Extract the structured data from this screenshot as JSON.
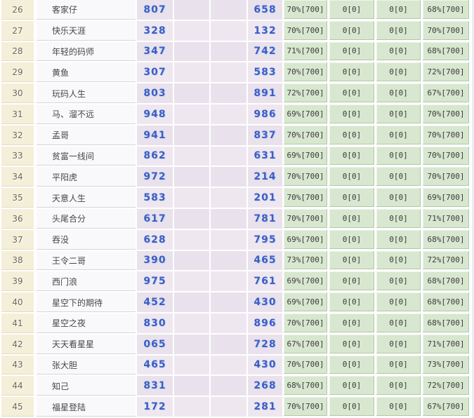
{
  "table": {
    "rows": [
      {
        "rank": "26",
        "name": "客家仔",
        "num1": "807",
        "num2": "658",
        "stat1": "70%[700]",
        "stat2": "0[0]",
        "stat3": "0[0]",
        "stat4": "68%[700]"
      },
      {
        "rank": "27",
        "name": "快乐天涯",
        "num1": "328",
        "num2": "132",
        "stat1": "70%[700]",
        "stat2": "0[0]",
        "stat3": "0[0]",
        "stat4": "70%[700]"
      },
      {
        "rank": "28",
        "name": "年轻的码师",
        "num1": "347",
        "num2": "742",
        "stat1": "71%[700]",
        "stat2": "0[0]",
        "stat3": "0[0]",
        "stat4": "68%[700]"
      },
      {
        "rank": "29",
        "name": "黄鱼",
        "num1": "307",
        "num2": "583",
        "stat1": "70%[700]",
        "stat2": "0[0]",
        "stat3": "0[0]",
        "stat4": "72%[700]"
      },
      {
        "rank": "30",
        "name": "玩码人生",
        "num1": "803",
        "num2": "891",
        "stat1": "72%[700]",
        "stat2": "0[0]",
        "stat3": "0[0]",
        "stat4": "67%[700]"
      },
      {
        "rank": "31",
        "name": "马、溜不远",
        "num1": "948",
        "num2": "986",
        "stat1": "69%[700]",
        "stat2": "0[0]",
        "stat3": "0[0]",
        "stat4": "70%[700]"
      },
      {
        "rank": "32",
        "name": "孟哥",
        "num1": "941",
        "num2": "837",
        "stat1": "70%[700]",
        "stat2": "0[0]",
        "stat3": "0[0]",
        "stat4": "70%[700]"
      },
      {
        "rank": "33",
        "name": "贫富一线间",
        "num1": "862",
        "num2": "631",
        "stat1": "69%[700]",
        "stat2": "0[0]",
        "stat3": "0[0]",
        "stat4": "70%[700]"
      },
      {
        "rank": "34",
        "name": "平阳虎",
        "num1": "972",
        "num2": "214",
        "stat1": "70%[700]",
        "stat2": "0[0]",
        "stat3": "0[0]",
        "stat4": "70%[700]"
      },
      {
        "rank": "35",
        "name": "天意人生",
        "num1": "583",
        "num2": "201",
        "stat1": "70%[700]",
        "stat2": "0[0]",
        "stat3": "0[0]",
        "stat4": "69%[700]"
      },
      {
        "rank": "36",
        "name": "头尾合分",
        "num1": "617",
        "num2": "781",
        "stat1": "70%[700]",
        "stat2": "0[0]",
        "stat3": "0[0]",
        "stat4": "71%[700]"
      },
      {
        "rank": "37",
        "name": "吞没",
        "num1": "628",
        "num2": "795",
        "stat1": "69%[700]",
        "stat2": "0[0]",
        "stat3": "0[0]",
        "stat4": "68%[700]"
      },
      {
        "rank": "38",
        "name": "王令二哥",
        "num1": "390",
        "num2": "465",
        "stat1": "73%[700]",
        "stat2": "0[0]",
        "stat3": "0[0]",
        "stat4": "72%[700]"
      },
      {
        "rank": "39",
        "name": "西门浪",
        "num1": "975",
        "num2": "761",
        "stat1": "69%[700]",
        "stat2": "0[0]",
        "stat3": "0[0]",
        "stat4": "68%[700]"
      },
      {
        "rank": "40",
        "name": "星空下的期待",
        "num1": "452",
        "num2": "430",
        "stat1": "69%[700]",
        "stat2": "0[0]",
        "stat3": "0[0]",
        "stat4": "68%[700]"
      },
      {
        "rank": "41",
        "name": "星空之夜",
        "num1": "830",
        "num2": "896",
        "stat1": "70%[700]",
        "stat2": "0[0]",
        "stat3": "0[0]",
        "stat4": "68%[700]"
      },
      {
        "rank": "42",
        "name": "天天看星星",
        "num1": "065",
        "num2": "728",
        "stat1": "67%[700]",
        "stat2": "0[0]",
        "stat3": "0[0]",
        "stat4": "71%[700]"
      },
      {
        "rank": "43",
        "name": "张大胆",
        "num1": "465",
        "num2": "430",
        "stat1": "70%[700]",
        "stat2": "0[0]",
        "stat3": "0[0]",
        "stat4": "73%[700]"
      },
      {
        "rank": "44",
        "name": "知己",
        "num1": "831",
        "num2": "268",
        "stat1": "68%[700]",
        "stat2": "0[0]",
        "stat3": "0[0]",
        "stat4": "72%[700]"
      },
      {
        "rank": "45",
        "name": "福星登陆",
        "num1": "172",
        "num2": "281",
        "stat1": "70%[700]",
        "stat2": "0[0]",
        "stat3": "0[0]",
        "stat4": "67%[700]"
      }
    ]
  },
  "colors": {
    "rank_bg": "#f4efd9",
    "name_bg": "#f9f8fb",
    "lavender_bg": "#e9e1eb",
    "lavender_alt_bg": "#efe7f0",
    "green_bg": "#d8e7d0",
    "number_blue": "#3a5fc5",
    "grid_border": "#ffffff"
  }
}
